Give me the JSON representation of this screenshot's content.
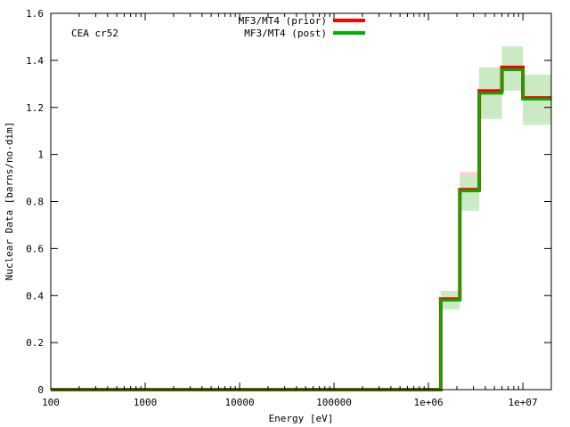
{
  "chart_data": {
    "type": "line",
    "step": true,
    "xscale": "log",
    "xlim": [
      100,
      20000000
    ],
    "ylim": [
      0,
      1.6
    ],
    "grid": false,
    "legend": "top-center",
    "annotation": "CEA cr52",
    "xlabel": "Energy [eV]",
    "ylabel": "Nuclear Data [barns/no-dim]",
    "xticks": [
      {
        "value": 100,
        "label": "100"
      },
      {
        "value": 1000,
        "label": "1000"
      },
      {
        "value": 10000,
        "label": "10000"
      },
      {
        "value": 100000,
        "label": "100000"
      },
      {
        "value": 1000000,
        "label": "1e+06"
      },
      {
        "value": 10000000,
        "label": "1e+07"
      }
    ],
    "yticks": [
      {
        "value": 0,
        "label": "0"
      },
      {
        "value": 0.2,
        "label": "0.2"
      },
      {
        "value": 0.4,
        "label": "0.4"
      },
      {
        "value": 0.6,
        "label": "0.6"
      },
      {
        "value": 0.8,
        "label": "0.8"
      },
      {
        "value": 1.0,
        "label": "1"
      },
      {
        "value": 1.2,
        "label": "1.2"
      },
      {
        "value": 1.4,
        "label": "1.4"
      },
      {
        "value": 1.6,
        "label": "1.6"
      }
    ],
    "bin_edges": [
      100,
      1350000,
      2150000,
      3450000,
      6000000,
      10000000,
      20000000
    ],
    "series": [
      {
        "name": "MF3/MT4 (prior)",
        "color": "#ff0000",
        "values": [
          0.0,
          0.385,
          0.85,
          1.27,
          1.37,
          1.24
        ]
      },
      {
        "name": "MF3/MT4 (post)",
        "color": "#00b000",
        "values": [
          0.0,
          0.38,
          0.845,
          1.26,
          1.36,
          1.235
        ]
      }
    ],
    "uncertainty_bands": [
      {
        "name": "prior",
        "color": "#ffc8c8",
        "lower": [
          0.0,
          0.345,
          0.775,
          1.16,
          1.275,
          1.14
        ],
        "upper": [
          0.0,
          0.42,
          0.925,
          1.37,
          1.455,
          1.335
        ]
      },
      {
        "name": "post",
        "color": "#c0eec0",
        "lower": [
          0.0,
          0.34,
          0.76,
          1.15,
          1.27,
          1.125
        ],
        "upper": [
          0.0,
          0.42,
          0.91,
          1.37,
          1.46,
          1.34
        ]
      }
    ]
  }
}
